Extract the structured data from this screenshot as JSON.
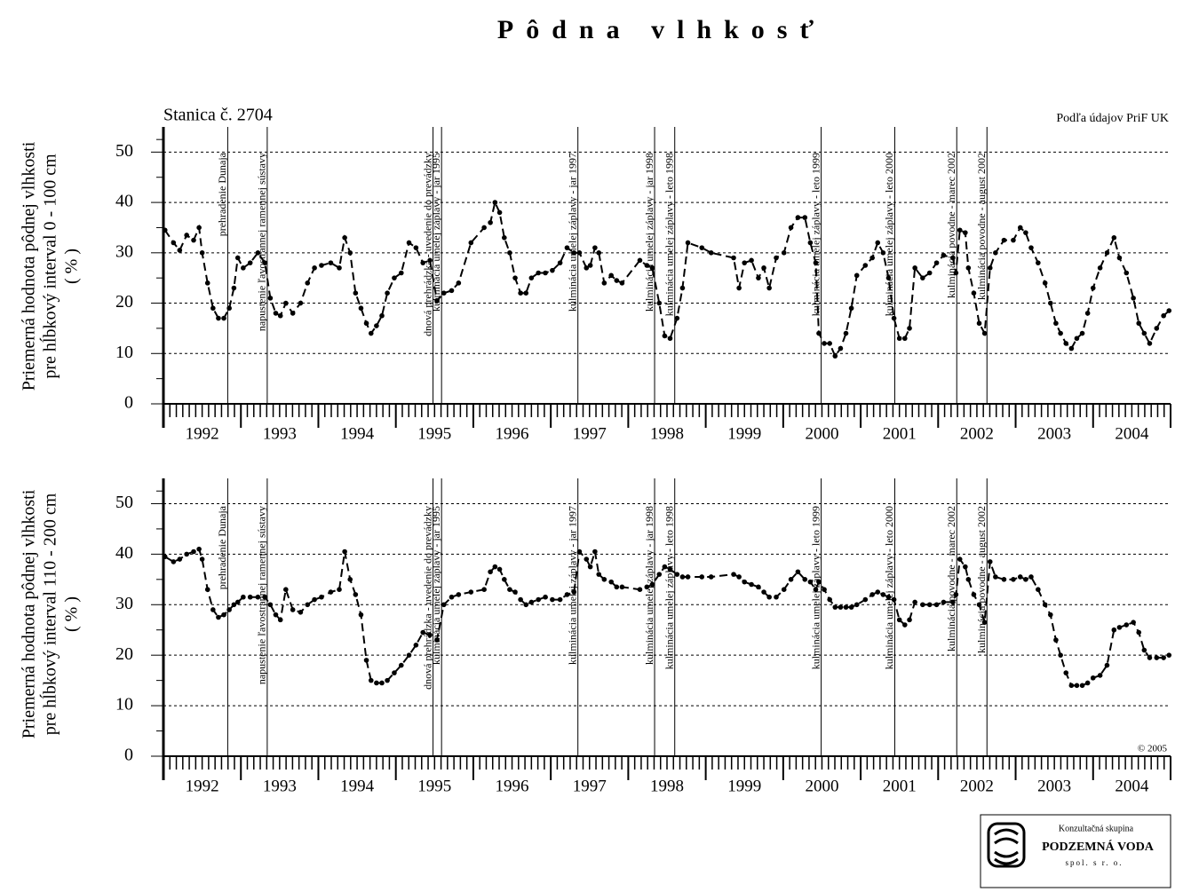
{
  "title": "Pôdna vlhkosť",
  "station": "Stanica č. 2704",
  "source": "Podľa údajov PriF UK",
  "copyright": "© 2005",
  "logo": {
    "group": "Konzultačná skupina",
    "name": "PODZEMNÁ VODA",
    "company": "spol. s r. o."
  },
  "chart_data": [
    {
      "type": "line",
      "ylabel": [
        "Priemerná hodnota pôdnej vlhkosti",
        "pre hĺbkový interval 0 - 100 cm",
        "( % )"
      ],
      "color": "#000000",
      "grid": true,
      "xlim": [
        1992,
        2005
      ],
      "xticks": [
        1992,
        1993,
        1994,
        1995,
        1996,
        1997,
        1998,
        1999,
        2000,
        2001,
        2002,
        2003,
        2004,
        2005
      ],
      "categories": [
        "1992",
        "1993",
        "1994",
        "1995",
        "1996",
        "1997",
        "1998",
        "1999",
        "2000",
        "2001",
        "2002",
        "2003",
        "2004"
      ],
      "ylim": [
        0,
        55
      ],
      "yticks": [
        0,
        10,
        20,
        30,
        40,
        50
      ],
      "annotations": [
        {
          "x": 1992.83,
          "label": "prehradenie Dunaja"
        },
        {
          "x": 1993.34,
          "label": "napustenie ľavostrannej ramennej sústavy"
        },
        {
          "x": 1995.48,
          "label": "dnová prehrádzka - uvedenie do prevádzky"
        },
        {
          "x": 1995.59,
          "label": "kulminácia umelej záplavy - jar 1995"
        },
        {
          "x": 1997.35,
          "label": "kulminácia umelej záplavy - jar 1997"
        },
        {
          "x": 1998.34,
          "label": "kulminácia umelej záplavy - jar 1998"
        },
        {
          "x": 1998.6,
          "label": "kulminácia umelej záplavy - leto 1998"
        },
        {
          "x": 2000.49,
          "label": "kulminácia umelej záplavy - leto 1999"
        },
        {
          "x": 2001.44,
          "label": "kulminácia umelej záplavy - leto 2000"
        },
        {
          "x": 2002.24,
          "label": "kulminácia povodne - marec 2002"
        },
        {
          "x": 2002.63,
          "label": "kulminácia povodne - august 2002"
        }
      ],
      "x": [
        1992.02,
        1992.13,
        1992.21,
        1992.3,
        1992.39,
        1992.46,
        1992.5,
        1992.57,
        1992.64,
        1992.71,
        1992.78,
        1992.85,
        1992.91,
        1992.96,
        1993.03,
        1993.12,
        1993.22,
        1993.31,
        1993.38,
        1993.45,
        1993.51,
        1993.58,
        1993.67,
        1993.77,
        1993.86,
        1993.95,
        1994.04,
        1994.16,
        1994.27,
        1994.34,
        1994.41,
        1994.48,
        1994.55,
        1994.62,
        1994.68,
        1994.75,
        1994.82,
        1994.89,
        1994.98,
        1995.07,
        1995.17,
        1995.26,
        1995.35,
        1995.44,
        1995.53,
        1995.62,
        1995.72,
        1995.81,
        1995.97,
        1996.14,
        1996.22,
        1996.28,
        1996.34,
        1996.4,
        1996.47,
        1996.54,
        1996.61,
        1996.68,
        1996.75,
        1996.84,
        1996.93,
        1997.02,
        1997.12,
        1997.21,
        1997.3,
        1997.37,
        1997.46,
        1997.51,
        1997.57,
        1997.62,
        1997.69,
        1997.78,
        1997.85,
        1997.92,
        1998.15,
        1998.24,
        1998.31,
        1998.4,
        1998.47,
        1998.54,
        1998.63,
        1998.7,
        1998.77,
        1998.95,
        1999.07,
        1999.36,
        1999.43,
        1999.5,
        1999.59,
        1999.68,
        1999.75,
        1999.82,
        1999.91,
        2000.01,
        2000.1,
        2000.19,
        2000.28,
        2000.35,
        2000.42,
        2000.46,
        2000.53,
        2000.6,
        2000.67,
        2000.74,
        2000.81,
        2000.88,
        2000.95,
        2001.06,
        2001.15,
        2001.22,
        2001.29,
        2001.36,
        2001.43,
        2001.5,
        2001.57,
        2001.63,
        2001.7,
        2001.8,
        2001.89,
        2001.98,
        2002.07,
        2002.19,
        2002.23,
        2002.28,
        2002.35,
        2002.39,
        2002.46,
        2002.53,
        2002.6,
        2002.67,
        2002.74,
        2002.85,
        2002.97,
        2003.06,
        2003.13,
        2003.2,
        2003.29,
        2003.38,
        2003.45,
        2003.52,
        2003.58,
        2003.65,
        2003.72,
        2003.79,
        2003.86,
        2003.93,
        2004.0,
        2004.09,
        2004.18,
        2004.27,
        2004.34,
        2004.43,
        2004.52,
        2004.59,
        2004.66,
        2004.73,
        2004.82,
        2004.91,
        2004.98
      ],
      "values": [
        34.5,
        32,
        30.5,
        33.5,
        32.5,
        35,
        30,
        24,
        19,
        17,
        17,
        19,
        23,
        29,
        27,
        28,
        30,
        28,
        21,
        18,
        17.5,
        20,
        18,
        20,
        24,
        27,
        27.5,
        28,
        27,
        33,
        30,
        22,
        19,
        16,
        14,
        15.5,
        17.5,
        22,
        25,
        26,
        32,
        31,
        28,
        28.5,
        20.5,
        22,
        22.5,
        24,
        32,
        35,
        36,
        40,
        38,
        33,
        30,
        25,
        22,
        22,
        25,
        26,
        26,
        26.5,
        28,
        31,
        30,
        30,
        27,
        27.5,
        31,
        30,
        24,
        25.5,
        24.5,
        24,
        28.5,
        27.5,
        27,
        20,
        13.5,
        13,
        17,
        23,
        32,
        31,
        30,
        29,
        23,
        28,
        28.5,
        25,
        27,
        23,
        29,
        30,
        35,
        37,
        37,
        32,
        28,
        14,
        12,
        12,
        9.5,
        11,
        14,
        19,
        25.5,
        27.5,
        29,
        32,
        30,
        25,
        17,
        13,
        13,
        15,
        27,
        25,
        26,
        28,
        29.5,
        29,
        26,
        34.5,
        34,
        27,
        22,
        16,
        14,
        27,
        30,
        32.5,
        32.5,
        35,
        34,
        31,
        28,
        24,
        20,
        16,
        14,
        12,
        11,
        13,
        14,
        18,
        23,
        27,
        30,
        33,
        29,
        26,
        21,
        16,
        14,
        12,
        15,
        17.5,
        18.5
      ]
    },
    {
      "type": "line",
      "ylabel": [
        "Priemerná hodnota pôdnej vlhkosti",
        "pre hĺbkový interval 110 - 200 cm",
        "( % )"
      ],
      "color": "#000000",
      "grid": true,
      "xlim": [
        1992,
        2005
      ],
      "xticks": [
        1992,
        1993,
        1994,
        1995,
        1996,
        1997,
        1998,
        1999,
        2000,
        2001,
        2002,
        2003,
        2004,
        2005
      ],
      "categories": [
        "1992",
        "1993",
        "1994",
        "1995",
        "1996",
        "1997",
        "1998",
        "1999",
        "2000",
        "2001",
        "2002",
        "2003",
        "2004"
      ],
      "ylim": [
        0,
        55
      ],
      "yticks": [
        0,
        10,
        20,
        30,
        40,
        50
      ],
      "annotations": [
        {
          "x": 1992.83,
          "label": "prehradenie Dunaja"
        },
        {
          "x": 1993.34,
          "label": "napustenie ľavostrannej ramennej sústavy"
        },
        {
          "x": 1995.48,
          "label": "dnová prehrádzka - uvedenie do prevádzky"
        },
        {
          "x": 1995.59,
          "label": "kulminácia umelej záplavy - jar 1995"
        },
        {
          "x": 1997.35,
          "label": "kulminácia umelej záplavy - jar 1997"
        },
        {
          "x": 1998.34,
          "label": "kulminácia umelej záplavy - jar 1998"
        },
        {
          "x": 1998.6,
          "label": "kulminácia umelej záplavy - leto 1998"
        },
        {
          "x": 2000.49,
          "label": "kulminácia umelej záplavy - leto 1999"
        },
        {
          "x": 2001.44,
          "label": "kulminácia umelej záplavy - leto 2000"
        },
        {
          "x": 2002.24,
          "label": "kulminácia povodne - marec 2002"
        },
        {
          "x": 2002.63,
          "label": "kulminácia povodne - august 2002"
        }
      ],
      "x": [
        1992.02,
        1992.13,
        1992.21,
        1992.3,
        1992.39,
        1992.46,
        1992.5,
        1992.57,
        1992.64,
        1992.71,
        1992.78,
        1992.85,
        1992.91,
        1992.96,
        1993.03,
        1993.12,
        1993.22,
        1993.31,
        1993.38,
        1993.45,
        1993.51,
        1993.58,
        1993.67,
        1993.77,
        1993.86,
        1993.95,
        1994.04,
        1994.16,
        1994.27,
        1994.34,
        1994.41,
        1994.48,
        1994.55,
        1994.62,
        1994.68,
        1994.75,
        1994.82,
        1994.89,
        1994.98,
        1995.07,
        1995.17,
        1995.26,
        1995.35,
        1995.44,
        1995.53,
        1995.62,
        1995.72,
        1995.81,
        1995.97,
        1996.14,
        1996.22,
        1996.28,
        1996.34,
        1996.4,
        1996.47,
        1996.54,
        1996.61,
        1996.68,
        1996.75,
        1996.84,
        1996.93,
        1997.02,
        1997.12,
        1997.21,
        1997.3,
        1997.37,
        1997.46,
        1997.51,
        1997.57,
        1997.62,
        1997.69,
        1997.78,
        1997.85,
        1997.92,
        1998.15,
        1998.24,
        1998.31,
        1998.4,
        1998.47,
        1998.54,
        1998.63,
        1998.7,
        1998.77,
        1998.95,
        1999.07,
        1999.36,
        1999.43,
        1999.5,
        1999.59,
        1999.68,
        1999.75,
        1999.82,
        1999.91,
        2000.01,
        2000.1,
        2000.19,
        2000.28,
        2000.35,
        2000.42,
        2000.46,
        2000.53,
        2000.6,
        2000.67,
        2000.74,
        2000.81,
        2000.88,
        2000.95,
        2001.06,
        2001.15,
        2001.22,
        2001.29,
        2001.36,
        2001.43,
        2001.5,
        2001.57,
        2001.63,
        2001.7,
        2001.8,
        2001.89,
        2001.98,
        2002.07,
        2002.19,
        2002.23,
        2002.28,
        2002.35,
        2002.39,
        2002.46,
        2002.53,
        2002.6,
        2002.67,
        2002.74,
        2002.85,
        2002.97,
        2003.06,
        2003.13,
        2003.2,
        2003.29,
        2003.38,
        2003.45,
        2003.52,
        2003.58,
        2003.65,
        2003.72,
        2003.79,
        2003.86,
        2003.93,
        2004.0,
        2004.09,
        2004.18,
        2004.27,
        2004.34,
        2004.43,
        2004.52,
        2004.59,
        2004.66,
        2004.73,
        2004.82,
        2004.91,
        2004.98
      ],
      "values": [
        39.5,
        38.5,
        39,
        40,
        40.5,
        41,
        39,
        33,
        29,
        27.5,
        28,
        29,
        30,
        30.5,
        31.5,
        31.5,
        31.5,
        31.5,
        30,
        28,
        27,
        33,
        29,
        28.5,
        30,
        31,
        31.5,
        32.5,
        33,
        40.5,
        35,
        32,
        28,
        19,
        15,
        14.5,
        14.5,
        15,
        16.5,
        18,
        20,
        22,
        24.5,
        24,
        23,
        30,
        31.5,
        32,
        32.5,
        33,
        36.5,
        37.5,
        37,
        35,
        33,
        32.5,
        31,
        30,
        30.5,
        31,
        31.5,
        31,
        31,
        32,
        32.5,
        40.5,
        39,
        37.5,
        40.5,
        36,
        35,
        34.5,
        33.5,
        33.5,
        33,
        33.5,
        34,
        36,
        37.5,
        37,
        36,
        35.5,
        35.5,
        35.5,
        35.5,
        36,
        35.5,
        34.5,
        34,
        33.5,
        32.5,
        31.5,
        31.5,
        33,
        35,
        36.5,
        35,
        34.5,
        33,
        34.5,
        33,
        31,
        29.5,
        29.5,
        29.5,
        29.5,
        30,
        31,
        32,
        32.5,
        32,
        31.5,
        31,
        27,
        26,
        27,
        30.5,
        30,
        30,
        30,
        30.5,
        30.5,
        32,
        39,
        37.5,
        35,
        32,
        30,
        26.5,
        38.5,
        35.5,
        35,
        35,
        35.5,
        35,
        35.5,
        33,
        30,
        28,
        23,
        20,
        16.5,
        14,
        14,
        14,
        14.5,
        15.5,
        16,
        18,
        25,
        25.5,
        26,
        26.5,
        24.5,
        21,
        19.5,
        19.5,
        19.5,
        20
      ]
    }
  ]
}
